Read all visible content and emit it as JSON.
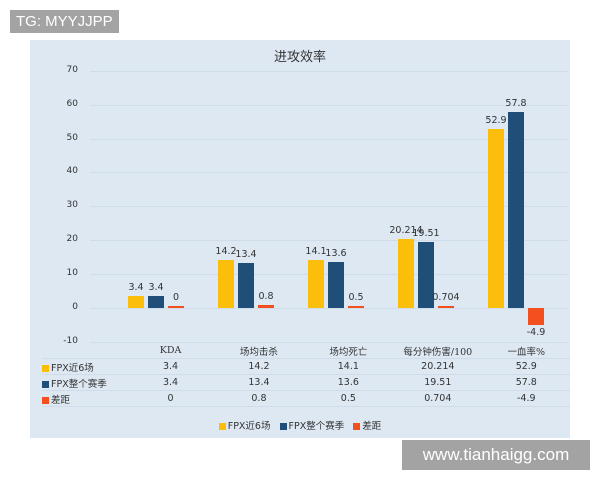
{
  "watermark_top": "TG: MYYJJPP",
  "watermark_bottom": "www.tianhaigg.com",
  "colors": {
    "series1": "#fbbf0b",
    "series2": "#1f4e79",
    "series3": "#f2501f",
    "panel_bg": "#dde8f3"
  },
  "chart_data": {
    "type": "bar",
    "title": "进攻效率",
    "categories": [
      "KDA",
      "场均击杀",
      "场均死亡",
      "每分钟伤害/100",
      "一血率%"
    ],
    "series": [
      {
        "name": "FPX近6场",
        "values": [
          3.4,
          14.2,
          14.1,
          20.214,
          52.9
        ]
      },
      {
        "name": "FPX整个赛季",
        "values": [
          3.4,
          13.4,
          13.6,
          19.51,
          57.8
        ]
      },
      {
        "name": "差距",
        "values": [
          0,
          0.8,
          0.5,
          0.704,
          -4.9
        ]
      }
    ],
    "xlabel": "",
    "ylabel": "",
    "ylim": [
      -10,
      70
    ],
    "yticks": [
      "70",
      "60",
      "50",
      "40",
      "30",
      "20",
      "10",
      "0",
      "-10"
    ],
    "grid": true,
    "legend_position": "bottom",
    "data_table": true,
    "table": {
      "headers": [
        "KDA",
        "场均击杀",
        "场均死亡",
        "每分钟伤害/100",
        "一血率%"
      ],
      "rows": [
        {
          "label": "FPX近6场",
          "cells": [
            "3.4",
            "14.2",
            "14.1",
            "20.214",
            "52.9"
          ]
        },
        {
          "label": "FPX整个赛季",
          "cells": [
            "3.4",
            "13.4",
            "13.6",
            "19.51",
            "57.8"
          ]
        },
        {
          "label": "差距",
          "cells": [
            "0",
            "0.8",
            "0.5",
            "0.704",
            "-4.9"
          ]
        }
      ]
    },
    "bar_labels": [
      [
        "3.4",
        "3.4",
        "0"
      ],
      [
        "14.2",
        "13.4",
        "0.8"
      ],
      [
        "14.1",
        "13.6",
        "0.5"
      ],
      [
        "20.214",
        "19.51",
        "0.704"
      ],
      [
        "52.9",
        "57.8",
        "-4.9"
      ]
    ]
  }
}
